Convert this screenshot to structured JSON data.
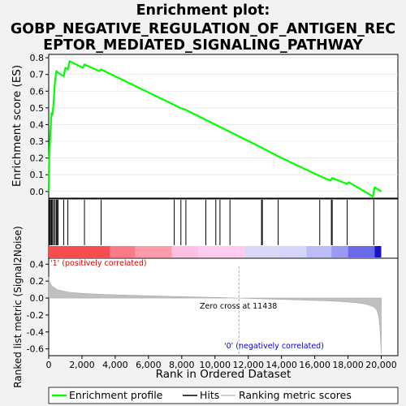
{
  "chart_data": {
    "type": "line",
    "title_lines": [
      "Enrichment plot:",
      "GOBP_NEGATIVE_REGULATION_OF_ANTIGEN_REC",
      "EPTOR_MEDIATED_SIGNALING_PATHWAY"
    ],
    "xlabel": "Rank in Ordered Dataset",
    "ylabel_top": "Enrichment score (ES)",
    "ylabel_bottom": "Ranked list metric (Signal2Noise)",
    "xlim": [
      0,
      21000
    ],
    "x_ticks": [
      0,
      2000,
      4000,
      6000,
      8000,
      10000,
      12000,
      14000,
      16000,
      18000,
      20000
    ],
    "x_tick_labels": [
      "0",
      "2,000",
      "4,000",
      "6,000",
      "8,000",
      "10,000",
      "12,000",
      "14,000",
      "16,000",
      "18,000",
      "20,000"
    ],
    "es_ylim": [
      -0.04,
      0.82
    ],
    "es_ticks": [
      0.0,
      0.1,
      0.2,
      0.3,
      0.4,
      0.5,
      0.6,
      0.7,
      0.8
    ],
    "es_tick_labels": [
      "0.0",
      "0.1",
      "0.2",
      "0.3",
      "0.4",
      "0.5",
      "0.6",
      "0.7",
      "0.8"
    ],
    "metric_ylim": [
      -0.68,
      0.47
    ],
    "metric_ticks": [
      0.4,
      0.2,
      0.0,
      -0.2,
      -0.4,
      -0.6
    ],
    "metric_tick_labels": [
      "0.4",
      "0.2",
      "0.0",
      "-0.2",
      "-0.4",
      "-0.6"
    ],
    "enrichment_profile": {
      "name": "Enrichment profile",
      "color": "#00ff00",
      "x": [
        0,
        20,
        60,
        110,
        170,
        230,
        300,
        380,
        460,
        560,
        900,
        1000,
        1150,
        1250,
        2050,
        2150,
        3050,
        3150,
        7500,
        7900,
        8200,
        12850,
        13800,
        16350,
        16950,
        17050,
        17950,
        18050,
        19500,
        19600,
        20000
      ],
      "y": [
        0.0,
        0.16,
        0.27,
        0.37,
        0.47,
        0.46,
        0.54,
        0.66,
        0.72,
        0.71,
        0.69,
        0.74,
        0.73,
        0.78,
        0.74,
        0.76,
        0.72,
        0.73,
        0.52,
        0.5,
        0.49,
        0.26,
        0.21,
        0.09,
        0.065,
        0.08,
        0.045,
        0.055,
        -0.03,
        0.025,
        0.0
      ]
    },
    "hits": {
      "name": "Hits",
      "color": "#000000",
      "x": [
        20,
        60,
        110,
        170,
        230,
        300,
        380,
        460,
        500,
        560,
        900,
        1150,
        2150,
        3150,
        7550,
        7950,
        8250,
        9450,
        10050,
        10300,
        10900,
        12800,
        12850,
        13800,
        16300,
        17000,
        17050,
        17950,
        19550
      ]
    },
    "ranking_metric": {
      "name": "Ranking metric scores",
      "color": "#c0c0c0",
      "x": [
        0,
        40,
        100,
        200,
        350,
        500,
        800,
        1200,
        2000,
        3000,
        5000,
        7000,
        9000,
        11438,
        13000,
        15000,
        16500,
        17500,
        18500,
        19000,
        19300,
        19500,
        19650,
        19750,
        19850,
        19920,
        20000
      ],
      "y": [
        0.25,
        0.2,
        0.17,
        0.14,
        0.12,
        0.1,
        0.085,
        0.07,
        0.055,
        0.045,
        0.032,
        0.022,
        0.012,
        0.0,
        -0.01,
        -0.022,
        -0.032,
        -0.04,
        -0.055,
        -0.07,
        -0.085,
        -0.1,
        -0.12,
        -0.15,
        -0.22,
        -0.35,
        -0.65
      ]
    },
    "heatmap_segments": [
      {
        "from": 0,
        "to": 3700,
        "color": "#f54d50"
      },
      {
        "from": 3700,
        "to": 5200,
        "color": "#fa7a88"
      },
      {
        "from": 5200,
        "to": 7400,
        "color": "#ff9aac"
      },
      {
        "from": 7400,
        "to": 9000,
        "color": "#ffc0e4"
      },
      {
        "from": 9000,
        "to": 11800,
        "color": "#ffccf0"
      },
      {
        "from": 11800,
        "to": 13800,
        "color": "#d8d8f6"
      },
      {
        "from": 13800,
        "to": 15500,
        "color": "#d6d6fa"
      },
      {
        "from": 15500,
        "to": 17000,
        "color": "#bcbcf6"
      },
      {
        "from": 17000,
        "to": 18000,
        "color": "#9a9af2"
      },
      {
        "from": 18000,
        "to": 19600,
        "color": "#6a6ae8"
      },
      {
        "from": 19600,
        "to": 20000,
        "color": "#1616c8"
      }
    ],
    "zero_cross_label": "Zero cross at 11438",
    "zero_cross": 11438,
    "pos_label": "'1' (positively correlated)",
    "neg_label": "'0' (negatively correlated)",
    "colors": {
      "pos_label": "#e00000",
      "neg_label": "#0000e0",
      "es_line": "#00ff00",
      "metric_fill": "#c0c0c0",
      "zero_line": "#c8c8c8"
    },
    "legend": [
      "Enrichment profile",
      "Hits",
      "Ranking metric scores"
    ],
    "legend_placement": "bottom"
  }
}
